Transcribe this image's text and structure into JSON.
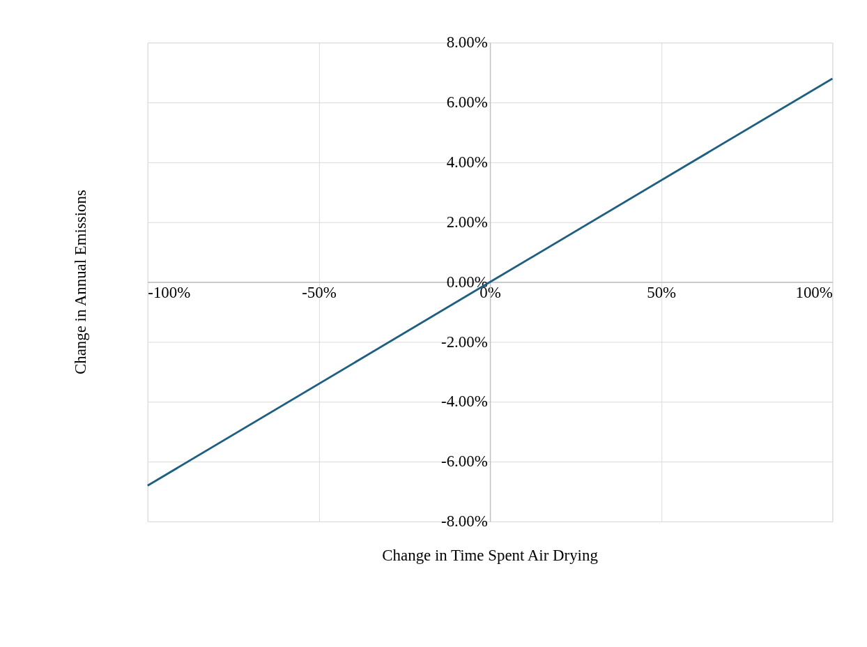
{
  "chart_data": {
    "type": "line",
    "xlabel": "Change in Time Spent Air Drying",
    "ylabel": "Change in Annual Emissions",
    "x": [
      -100,
      0,
      100
    ],
    "series": [
      {
        "color": "#1f5f82",
        "values": [
          -6.8,
          0,
          6.8
        ]
      }
    ],
    "xlim": [
      -100,
      100
    ],
    "ylim": [
      -8,
      8
    ],
    "xticks": [
      {
        "value": -100,
        "label": "-100%"
      },
      {
        "value": -50,
        "label": "-50%"
      },
      {
        "value": 0,
        "label": "0%"
      },
      {
        "value": 50,
        "label": "50%"
      },
      {
        "value": 100,
        "label": "100%"
      }
    ],
    "yticks": [
      {
        "value": -8,
        "label": "-8.00%"
      },
      {
        "value": -6,
        "label": "-6.00%"
      },
      {
        "value": -4,
        "label": "-4.00%"
      },
      {
        "value": -2,
        "label": "-2.00%"
      },
      {
        "value": 0,
        "label": "0.00%"
      },
      {
        "value": 2,
        "label": "2.00%"
      },
      {
        "value": 4,
        "label": "4.00%"
      },
      {
        "value": 6,
        "label": "6.00%"
      },
      {
        "value": 8,
        "label": "8.00%"
      }
    ],
    "grid": true,
    "marker": "none",
    "line_style": "solid"
  }
}
